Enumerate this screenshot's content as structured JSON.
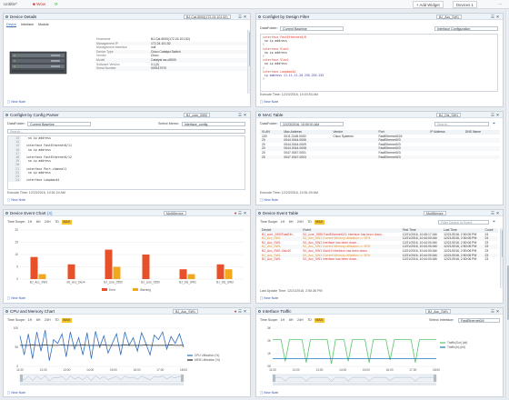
{
  "topbar": {
    "tab1": "Untitle^",
    "tab2": "Wow",
    "add_widget": "+ Add Widget",
    "devices": "Devices",
    "devices_count": "1"
  },
  "p1": {
    "title": "Device Details",
    "device": "BJ-Cat-5000(172.24.101.52)",
    "tabs": [
      "Device",
      "Interface",
      "Module"
    ],
    "rows": [
      [
        "Hostname",
        "BJ-Cat-5000(172.24.101.52)"
      ],
      [
        "Management IP",
        "172.24.101.52"
      ],
      [
        "Management Interface",
        "null"
      ],
      [
        "Device Type",
        "Cisco Catalyst Switch"
      ],
      [
        "Vendor",
        "Cisco"
      ],
      [
        "Model",
        "Catalyst ws-c5000"
      ],
      [
        "Software Version",
        "4.1(3)"
      ],
      [
        "Serial Number",
        "009147970"
      ]
    ],
    "new_note": "New Note"
  },
  "p2": {
    "title": "Configlet by Design Filter",
    "device": "BJ_Acc_SW1",
    "datafolder_label": "DataFolder:",
    "datafolder": "Current Baseline",
    "config": "Interface Configuration",
    "lines": [
      {
        "t": "interface FastEthernet0/8",
        "c": "#d32"
      },
      {
        "t": " no ip address",
        "c": "#333"
      },
      {
        "t": "!",
        "c": "#333"
      },
      {
        "t": "interface Vlan1",
        "c": "#d32"
      },
      {
        "t": " no ip address",
        "c": "#333"
      },
      {
        "t": "!",
        "c": "#333"
      },
      {
        "t": "interface Vlan1",
        "c": "#d32"
      },
      {
        "t": " no ip address",
        "c": "#333"
      },
      {
        "t": "!",
        "c": "#333"
      },
      {
        "t": "interface Loopback1",
        "c": "#d32"
      },
      {
        "t": " ip address 11.11.11.20 255.255.255",
        "c": "#33a"
      },
      {
        "t": "!",
        "c": "#333"
      }
    ],
    "exec": "Execute Time: 12/23/2016, 10:03:53 AM",
    "new_note": "New Note"
  },
  "p3": {
    "title": "Configlet by Config Parser",
    "device": "BJ_core_0550",
    "datafolder_label": "DataFolder:",
    "datafolder": "Current Baseline",
    "select_memo_label": "Select Memo:",
    "select_memo": "interface_config",
    "search_placeholder": "Search...",
    "lines": [
      {
        "n": "13",
        "t": " no ip address",
        "c": "#333"
      },
      {
        "n": "14",
        "t": "",
        "c": "#333"
      },
      {
        "n": "15",
        "t": "interface FastEthernet0/11",
        "c": "#333"
      },
      {
        "n": "16",
        "t": " no ip address",
        "c": "#333"
      },
      {
        "n": "17",
        "t": "",
        "c": "#333"
      },
      {
        "n": "18",
        "t": "interface FastEthernet0/12",
        "c": "#333"
      },
      {
        "n": "19",
        "t": " no ip address",
        "c": "#333"
      },
      {
        "n": "20",
        "t": "",
        "c": "#333"
      },
      {
        "n": "21",
        "t": "interface Port-channel1",
        "c": "#333"
      },
      {
        "n": "22",
        "t": " no ip address",
        "c": "#333"
      },
      {
        "n": "23",
        "t": "",
        "c": "#333"
      },
      {
        "n": "24",
        "t": "interface Loopback1",
        "c": "#333"
      }
    ],
    "exec": "Execute Time: 12/23/2016, 10:51:24 AM",
    "new_note": "New Note"
  },
  "p4": {
    "title": "MAC Table",
    "device": "BJ_Dis_SW1",
    "datafolder_label": "DataFolder:",
    "datafolder": "12/23/2016, 10:50:51 AM",
    "search_placeholder": "Search...",
    "headers": [
      "VLAN",
      "Mac Address",
      "Vendor",
      "Port",
      "IP Address",
      "DNS Name"
    ],
    "rows": [
      [
        "100",
        "0011.2148.0000",
        "Cisco Systems",
        "FastEthernet0/24",
        "",
        ""
      ],
      [
        "20",
        "0044.0044.0006",
        "",
        "FastEthernet0/3",
        "",
        ""
      ],
      [
        "20",
        "0044.0044.0009",
        "",
        "FastEthernet0/3",
        "",
        ""
      ],
      [
        "20",
        "0044.0044.0008",
        "",
        "FastEthernet0/3",
        "",
        ""
      ],
      [
        "20",
        "0047.0047.0001",
        "",
        "FastEthernet0/3",
        "",
        ""
      ],
      [
        "20",
        "0047.0047.0003",
        "",
        "FastEthernet0/3",
        "",
        ""
      ]
    ],
    "exec": "Execute Time: 12/23/2016, 10:51:09 AM",
    "new_note": "New Note"
  },
  "p5": {
    "title": "Device Event Chart",
    "badge": "(4)",
    "device": "MultiDevice",
    "time_scope_label": "Time Scope:",
    "ranges": [
      "1H",
      "6H",
      "24H",
      "7D",
      "MAX"
    ],
    "active_range": "MAX",
    "legend": [
      "Error",
      "Warning"
    ],
    "new_note": "New Note"
  },
  "p6": {
    "title": "Device Event Table",
    "device": "MultiDevice",
    "time_scope_label": "Time Scope:",
    "ranges": [
      "1H",
      "6H",
      "24H",
      "7D",
      "MAX"
    ],
    "active_range": "MAX",
    "filter_placeholder": "Filter Device or Event",
    "headers": [
      "Device",
      "Event",
      "First Time",
      "Last Time",
      "Count"
    ],
    "rows": [
      {
        "d": "BJ_core_0550FastEth...",
        "e": "BJ_core_0550 FastEthernet0/11 interface has been down...",
        "f": "12/21/2016, 10:45:17 AM",
        "l": "12/21/2016, 2:50:05 PM",
        "n": "24",
        "c": "#d33"
      },
      {
        "d": "BJ_Acc_SW1",
        "e": "BJ_Acc_SW1 Current Memory utilization >= 90%",
        "f": "12/21/2016, 10:44:00 AM",
        "l": "12/21/2016, 2:50:06 PM",
        "n": "24",
        "c": "#e8901a"
      },
      {
        "d": "BJ_Acc_SW1",
        "e": "BJ_Acc_SW1 Interface has been down...",
        "f": "12/21/2016, 10:44:00 AM",
        "l": "12/21/2016, 2:50:06 PM",
        "n": "23",
        "c": "#d33"
      },
      {
        "d": "BJ_Acc_SW1",
        "e": "BJ_Acc_SW1 Current Memory utilization >= 90%",
        "f": "12/21/2016, 10:44:00 AM",
        "l": "12/21/2016, 2:50:06 PM",
        "n": "23",
        "c": "#e8901a"
      },
      {
        "d": "BJ_Acc_SW1 Vlan10",
        "e": "BJ_Acc_SW1 Vlan10 Interface has been down...",
        "f": "12/21/2016, 10:44:00 AM",
        "l": "12/21/2016, 2:50:06 PM",
        "n": "23",
        "c": "#d33"
      },
      {
        "d": "BJ_Acc_SW1",
        "e": "BJ_Acc_SW1 Current Memory utilization >= 90%",
        "f": "12/21/2016, 10:44:00 AM",
        "l": "12/21/2016, 2:50:06 PM",
        "n": "23",
        "c": "#e8901a"
      },
      {
        "d": "BJ_Acc_SW1",
        "e": "BJ_Acc_SW1 Interface has been down...",
        "f": "12/21/2016, 10:44:00 AM",
        "l": "12/21/2016, 2:50:06 PM",
        "n": "23",
        "c": "#d33"
      }
    ],
    "exec": "Last Update Time: 12/21/2016, 2:50:36 PM",
    "new_note": "New Note"
  },
  "p7": {
    "title": "CPU and Memory Chart",
    "device": "BJ_Acc_SW1",
    "time_scope_label": "Time Scope:",
    "ranges": [
      "1H",
      "6H",
      "24H",
      "7D",
      "MAX"
    ],
    "active_range": "MAX",
    "legend": [
      "CPU Utilization (%)",
      "MEM Utilization (%)"
    ],
    "new_note": "New Note"
  },
  "p8": {
    "title": "Interface Traffic",
    "device": "BJ_Acc_SW1",
    "time_scope_label": "Time Scope:",
    "ranges": [
      "1H",
      "6H",
      "24H",
      "7D",
      "MAX"
    ],
    "active_range": "MAX",
    "select_iface_label": "Select Interface:",
    "select_iface": "FastEthernet0/4",
    "legend": [
      "Traffic(Out) (bit)",
      "Traffic(In) (bit)"
    ],
    "new_note": "New Note"
  },
  "chart_data": [
    {
      "type": "bar",
      "title": "Device Event Chart",
      "categories": [
        "BJ_Acc_SW1",
        "BJ_Acc_Dev4",
        "BJ_core_0550",
        "BJ_core_0550",
        "BJ_Dis_SW1",
        "BJ_Dis_SW2"
      ],
      "series": [
        {
          "name": "Error",
          "values": [
            9,
            6,
            12,
            10,
            4,
            6
          ]
        },
        {
          "name": "Warning",
          "values": [
            2,
            0,
            5,
            0,
            2,
            4
          ]
        }
      ],
      "ylim": [
        0,
        20
      ],
      "yticks": [
        0,
        5,
        10,
        15,
        20
      ],
      "legend": "bottom",
      "colors": [
        "#e8502a",
        "#f1a81c"
      ]
    },
    {
      "type": "line",
      "title": "CPU and Memory Chart",
      "x_ticks": [
        "11:00",
        "12:00",
        "13:00",
        "14:00",
        "15:00",
        "16:00",
        "17:00",
        "18:00"
      ],
      "ylim": [
        0,
        100
      ],
      "yticks": [
        0,
        50,
        100
      ],
      "series": [
        {
          "name": "CPU Utilization (%)",
          "values": [
            80,
            30,
            85,
            20,
            90,
            40,
            95,
            15,
            70,
            60,
            85,
            25,
            90,
            45,
            75,
            30,
            88,
            20,
            92,
            50,
            80,
            35,
            60,
            85,
            30,
            90,
            55,
            75,
            40,
            88,
            60,
            30,
            82,
            70,
            90,
            45,
            78,
            60,
            85,
            50
          ]
        },
        {
          "name": "MEM Utilization (%)",
          "values": [
            55,
            55,
            55,
            56,
            55,
            55,
            56,
            55,
            55,
            55,
            56,
            55,
            55,
            55,
            55,
            56,
            55,
            55,
            55,
            55,
            56,
            55,
            55,
            55,
            55,
            56,
            55,
            55,
            55,
            55,
            56,
            55,
            55,
            55,
            55,
            55,
            56,
            55,
            55,
            55
          ]
        }
      ],
      "legend": "right",
      "colors": [
        "#2f6dc0",
        "#222222"
      ]
    },
    {
      "type": "line",
      "title": "Interface Traffic",
      "x_ticks": [
        "11:00",
        "12:00",
        "13:00",
        "14:00",
        "15:00",
        "16:00",
        "17:00",
        "18:00"
      ],
      "yticks": [
        "0K",
        "1K",
        "2K",
        "3K"
      ],
      "ylim": [
        0,
        3
      ],
      "series": [
        {
          "name": "Traffic(Out) (bit)",
          "values": [
            2.1,
            2.1,
            2.1,
            0.4,
            2.1,
            2.1,
            2.1,
            2.1,
            0.3,
            2.1,
            2.1,
            2.1,
            2.1,
            2.1,
            0.2,
            2.1,
            2.1,
            2.1,
            0.4,
            2.1,
            2.1,
            2.1,
            2.1,
            0.3,
            2.1,
            2.1,
            2.1,
            2.1,
            0.5,
            2.1,
            2.1,
            2.1,
            2.1,
            2.1,
            0.3,
            2.1,
            2.1,
            2.1,
            2.1,
            2.1
          ]
        },
        {
          "name": "Traffic(In) (bit)",
          "values": [
            0.6,
            0.6,
            0.6,
            0.6,
            0.6,
            0.6,
            0.6,
            0.6,
            0.6,
            0.6,
            0.6,
            0.6,
            0.6,
            0.6,
            0.6,
            0.6,
            0.6,
            0.6,
            0.6,
            0.6,
            0.6,
            0.6,
            0.6,
            0.6,
            0.6,
            0.6,
            0.6,
            0.6,
            0.6,
            0.6,
            0.6,
            0.6,
            0.6,
            0.6,
            0.6,
            0.6,
            0.6,
            0.6,
            0.6,
            0.6
          ]
        }
      ],
      "legend": "right",
      "colors": [
        "#59c46a",
        "#1b7cc0"
      ]
    }
  ],
  "colors": {
    "accent": "#3a6fb0",
    "active_time": "#f4c430",
    "error": "#e8502a",
    "warning": "#f1a81c",
    "link": "#3355aa"
  }
}
